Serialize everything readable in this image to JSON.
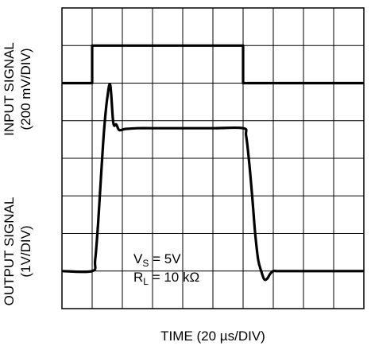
{
  "chart_data": {
    "type": "line",
    "xlabel": "TIME (20 µs/DIV)",
    "ylabel_top": {
      "line1": "INPUT SIGNAL",
      "line2": "(200 mV/DIV)"
    },
    "ylabel_bottom": {
      "line1": "OUTPUT SIGNAL",
      "line2": "(1V/DIV)"
    },
    "grid": true,
    "divisions": {
      "x": 10,
      "y": 8
    },
    "series": [
      {
        "key": "input",
        "x_div": [
          0,
          1.0,
          1.0,
          6.0,
          6.0,
          10
        ],
        "y_div": [
          6.0,
          6.0,
          7.0,
          7.0,
          6.0,
          6.0
        ]
      },
      {
        "key": "output",
        "x_div": [
          0,
          1.0,
          1.1,
          1.2,
          1.3,
          1.4,
          1.5,
          1.6,
          1.7,
          1.8,
          1.9,
          2.1,
          2.5,
          3.0,
          4.0,
          5.0,
          6.0,
          6.1,
          6.2,
          6.3,
          6.4,
          6.5,
          6.6,
          6.7,
          6.8,
          6.9,
          7.0,
          7.1,
          7.3,
          7.6,
          8.0,
          10
        ],
        "y_div": [
          1.0,
          1.0,
          1.3,
          2.3,
          3.6,
          4.8,
          5.6,
          5.95,
          4.95,
          4.9,
          4.75,
          4.78,
          4.8,
          4.8,
          4.8,
          4.8,
          4.8,
          4.6,
          3.9,
          3.0,
          2.0,
          1.3,
          1.0,
          0.78,
          0.8,
          0.93,
          1.0,
          1.0,
          1.0,
          1.0,
          1.0,
          1.0
        ]
      }
    ],
    "annotation": {
      "vs_main": "V",
      "vs_sub": "S",
      "vs_value": " = 5V",
      "rl_main": "R",
      "rl_sub": "L",
      "rl_value": " = 10 kΩ"
    }
  }
}
